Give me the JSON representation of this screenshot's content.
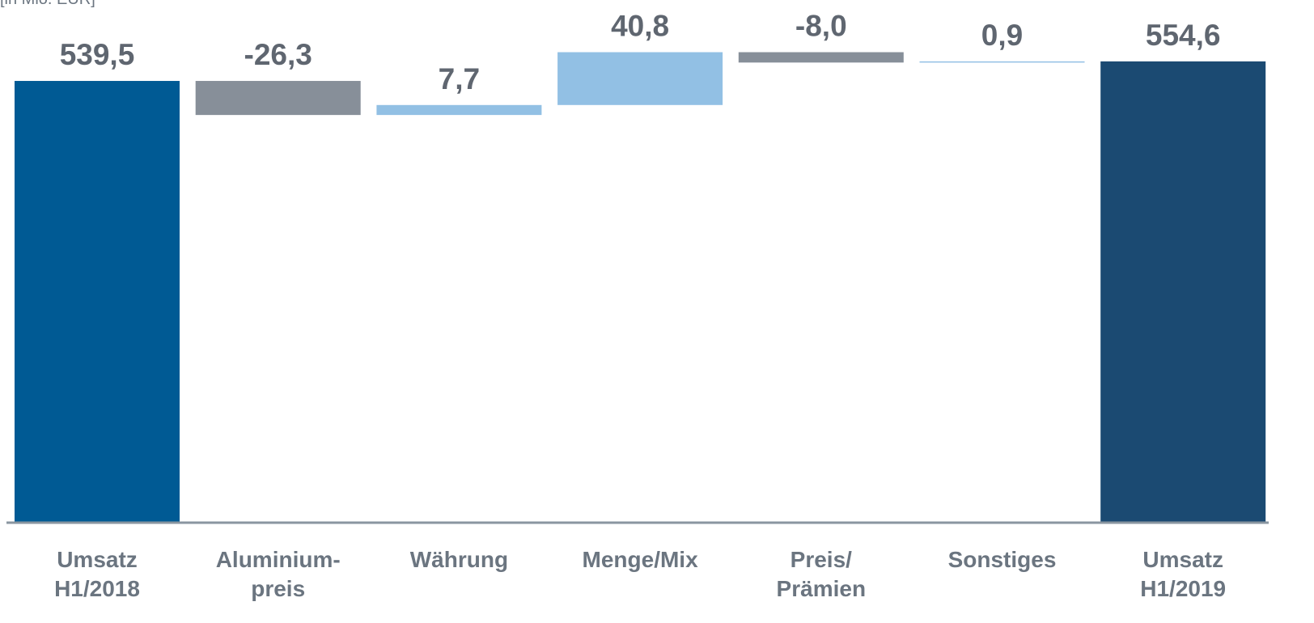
{
  "chart_data": {
    "type": "waterfall",
    "subtitle": "[in Mio. EUR]",
    "categories": [
      "Umsatz\nH1/2018",
      "Aluminium-\npreis",
      "Währung",
      "Menge/Mix",
      "Preis/\nPrämien",
      "Sonstiges",
      "Umsatz\nH1/2019"
    ],
    "values": [
      539.5,
      -26.3,
      7.7,
      40.8,
      -8.0,
      0.9,
      554.6
    ],
    "value_labels": [
      "539,5",
      "-26,3",
      "7,7",
      "40,8",
      "-8,0",
      "0,9",
      "554,6"
    ],
    "is_total": [
      true,
      false,
      false,
      false,
      false,
      false,
      true
    ],
    "colors": [
      "#005a94",
      "#878f99",
      "#92c0e4",
      "#92c0e4",
      "#878f99",
      "#92c0e4",
      "#1b4a72"
    ],
    "ylim": [
      199,
      602
    ]
  }
}
